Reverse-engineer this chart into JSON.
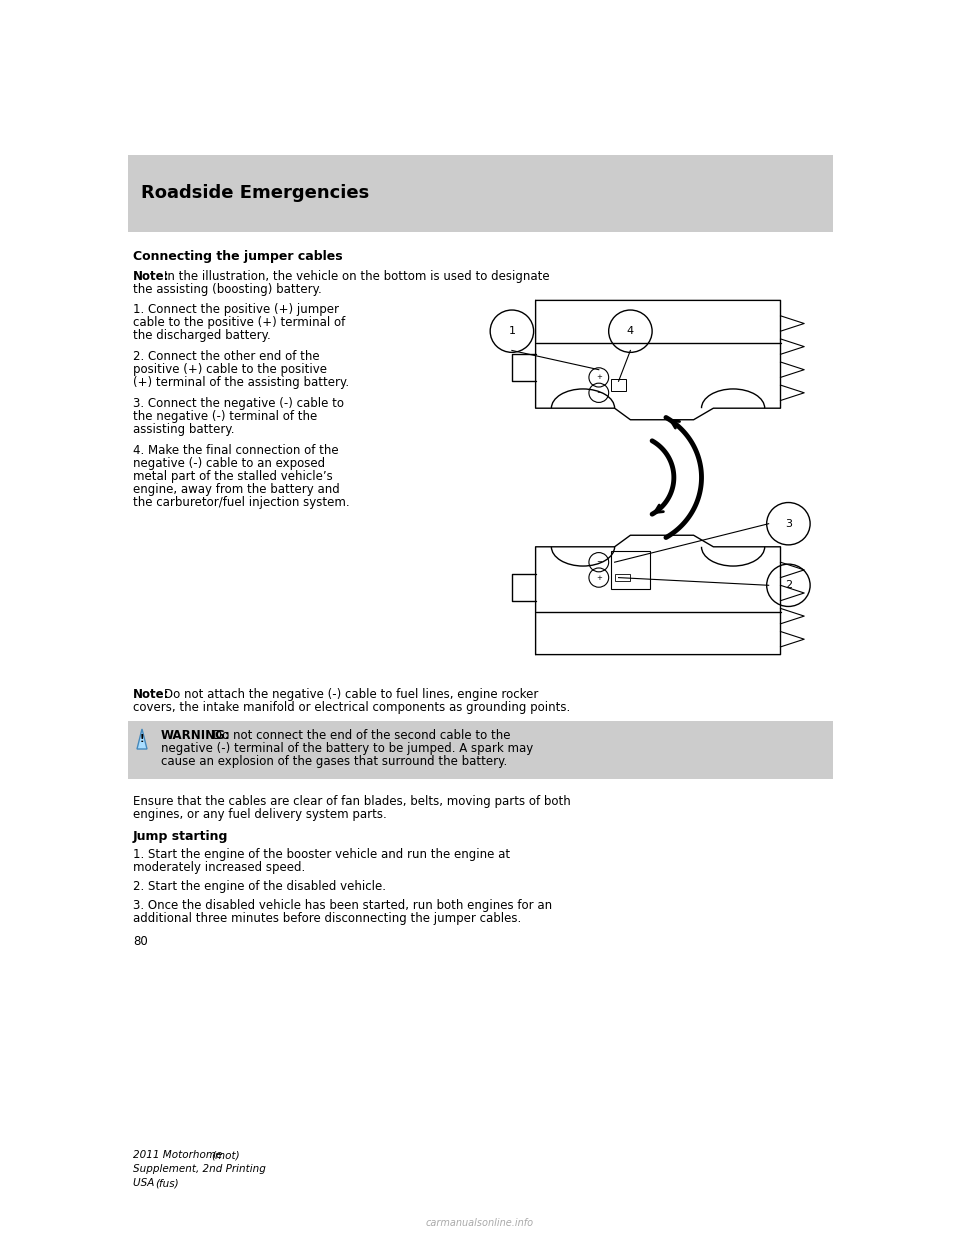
{
  "page_bg": "#ffffff",
  "header_bg": "#cccccc",
  "header_text": "Roadside Emergencies",
  "header_text_color": "#000000",
  "header_fontsize": 13,
  "section_title": "Connecting the jumper cables",
  "section_title_fontsize": 9.0,
  "note1_bold": "Note:",
  "note1_text": " In the illustration, the vehicle on the bottom is used to designate\nthe assisting (boosting) battery.",
  "steps": [
    "1. Connect the positive (+) jumper\ncable to the positive (+) terminal of\nthe discharged battery.",
    "2. Connect the other end of the\npositive (+) cable to the positive\n(+) terminal of the assisting battery.",
    "3. Connect the negative (-) cable to\nthe negative (-) terminal of the\nassisting battery.",
    "4. Make the final connection of the\nnegative (-) cable to an exposed\nmetal part of the stalled vehicle’s\nengine, away from the battery and\nthe carburetor/fuel injection system."
  ],
  "note2_bold": "Note:",
  "note2_text": " Do not attach the negative (-) cable to fuel lines, engine rocker\ncovers, the intake manifold or electrical components as grounding points.",
  "warning_bold": "WARNING:",
  "warning_text": " Do not connect the end of the second cable to the\nnegative (-) terminal of the battery to be jumped. A spark may\ncause an explosion of the gases that surround the battery.",
  "warning_bg": "#cccccc",
  "ensure_text": "Ensure that the cables are clear of fan blades, belts, moving parts of both\nengines, or any fuel delivery system parts.",
  "jump_title": "Jump starting",
  "jump_steps": [
    "1. Start the engine of the booster vehicle and run the engine at\nmoderately increased speed.",
    "2. Start the engine of the disabled vehicle.",
    "3. Once the disabled vehicle has been started, run both engines for an\nadditional three minutes before disconnecting the jumper cables."
  ],
  "page_number": "80",
  "footer_line1": "2011 Motorhome",
  "footer_mot": "(mot)",
  "footer_line2": "Supplement, 2nd Printing",
  "footer_line3": "USA",
  "footer_fus": "(fus)",
  "watermark": "carmanualsonline.info",
  "body_fontsize": 8.5,
  "small_fontsize": 7.5
}
